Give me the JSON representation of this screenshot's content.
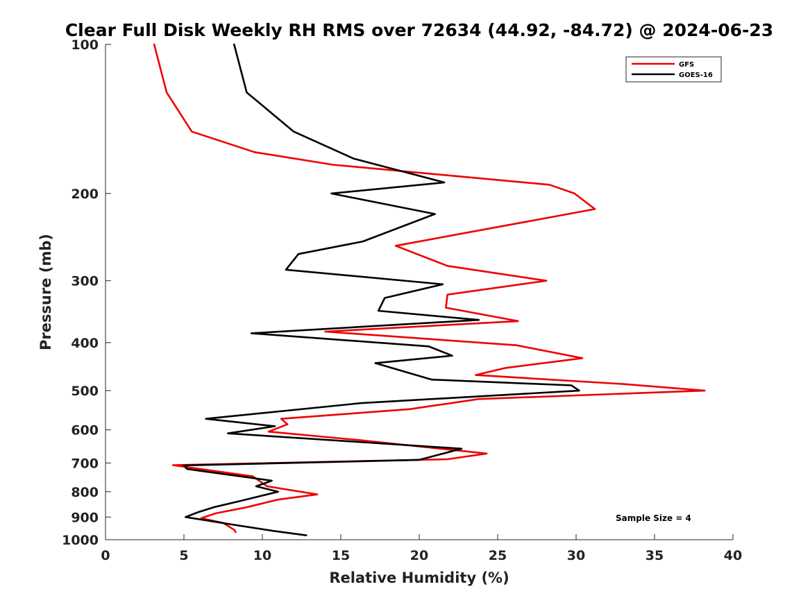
{
  "chart_data": {
    "type": "line",
    "title": "Clear Full Disk Weekly RH RMS over 72634 (44.92, -84.72) @ 2024-06-23",
    "xlabel": "Relative Humidity (%)",
    "ylabel": "Pressure (mb)",
    "xlim": [
      0,
      40
    ],
    "ylim": [
      100,
      1000
    ],
    "y_scale": "log",
    "y_reversed": true,
    "xticks": [
      0,
      5,
      10,
      15,
      20,
      25,
      30,
      35,
      40
    ],
    "xtick_labels": [
      "0",
      "5",
      "10",
      "15",
      "20",
      "25",
      "30",
      "35",
      "40"
    ],
    "yticks": [
      100,
      200,
      300,
      400,
      500,
      600,
      700,
      800,
      900,
      1000
    ],
    "ytick_labels": [
      "100",
      "200",
      "300",
      "400",
      "500",
      "600",
      "700",
      "800",
      "900",
      "1000"
    ],
    "grid": false,
    "legend_position": "top-right",
    "annotation": "Sample Size = 4",
    "series": [
      {
        "name": "GFS",
        "color": "#ee0000",
        "points": [
          [
            3.1,
            100
          ],
          [
            3.9,
            125
          ],
          [
            5.5,
            150
          ],
          [
            9.5,
            165
          ],
          [
            14.5,
            175
          ],
          [
            28.3,
            192
          ],
          [
            29.9,
            200
          ],
          [
            31.2,
            215
          ],
          [
            18.5,
            255
          ],
          [
            21.8,
            280
          ],
          [
            28.1,
            300
          ],
          [
            21.8,
            320
          ],
          [
            21.7,
            340
          ],
          [
            26.3,
            362
          ],
          [
            14.0,
            380
          ],
          [
            26.2,
            405
          ],
          [
            30.4,
            430
          ],
          [
            25.5,
            450
          ],
          [
            23.6,
            465
          ],
          [
            33.0,
            485
          ],
          [
            38.2,
            500
          ],
          [
            23.8,
            520
          ],
          [
            19.4,
            545
          ],
          [
            11.2,
            570
          ],
          [
            11.6,
            585
          ],
          [
            10.4,
            605
          ],
          [
            16.3,
            630
          ],
          [
            24.3,
            670
          ],
          [
            21.8,
            688
          ],
          [
            4.3,
            707
          ],
          [
            9.4,
            745
          ],
          [
            10.3,
            780
          ],
          [
            13.5,
            810
          ],
          [
            11.0,
            830
          ],
          [
            9.0,
            860
          ],
          [
            7.0,
            885
          ],
          [
            6.1,
            905
          ],
          [
            7.5,
            925
          ],
          [
            8.2,
            955
          ],
          [
            8.3,
            965
          ]
        ]
      },
      {
        "name": "GOES-16",
        "color": "#000000",
        "points": [
          [
            8.2,
            100
          ],
          [
            9.0,
            125
          ],
          [
            12.0,
            150
          ],
          [
            15.8,
            170
          ],
          [
            21.6,
            190
          ],
          [
            14.4,
            200
          ],
          [
            21.0,
            220
          ],
          [
            16.4,
            250
          ],
          [
            12.3,
            265
          ],
          [
            11.5,
            285
          ],
          [
            21.5,
            305
          ],
          [
            17.8,
            325
          ],
          [
            17.4,
            345
          ],
          [
            23.8,
            360
          ],
          [
            9.3,
            383
          ],
          [
            20.6,
            407
          ],
          [
            22.1,
            425
          ],
          [
            17.2,
            440
          ],
          [
            20.8,
            475
          ],
          [
            29.7,
            488
          ],
          [
            30.2,
            500
          ],
          [
            16.3,
            530
          ],
          [
            6.4,
            570
          ],
          [
            10.8,
            590
          ],
          [
            7.8,
            610
          ],
          [
            22.7,
            655
          ],
          [
            20.0,
            690
          ],
          [
            5.0,
            708
          ],
          [
            5.2,
            720
          ],
          [
            10.6,
            760
          ],
          [
            9.6,
            780
          ],
          [
            11.0,
            800
          ],
          [
            8.6,
            835
          ],
          [
            6.9,
            860
          ],
          [
            5.9,
            880
          ],
          [
            5.1,
            900
          ],
          [
            7.9,
            930
          ],
          [
            10.7,
            960
          ],
          [
            12.8,
            980
          ]
        ]
      }
    ]
  }
}
